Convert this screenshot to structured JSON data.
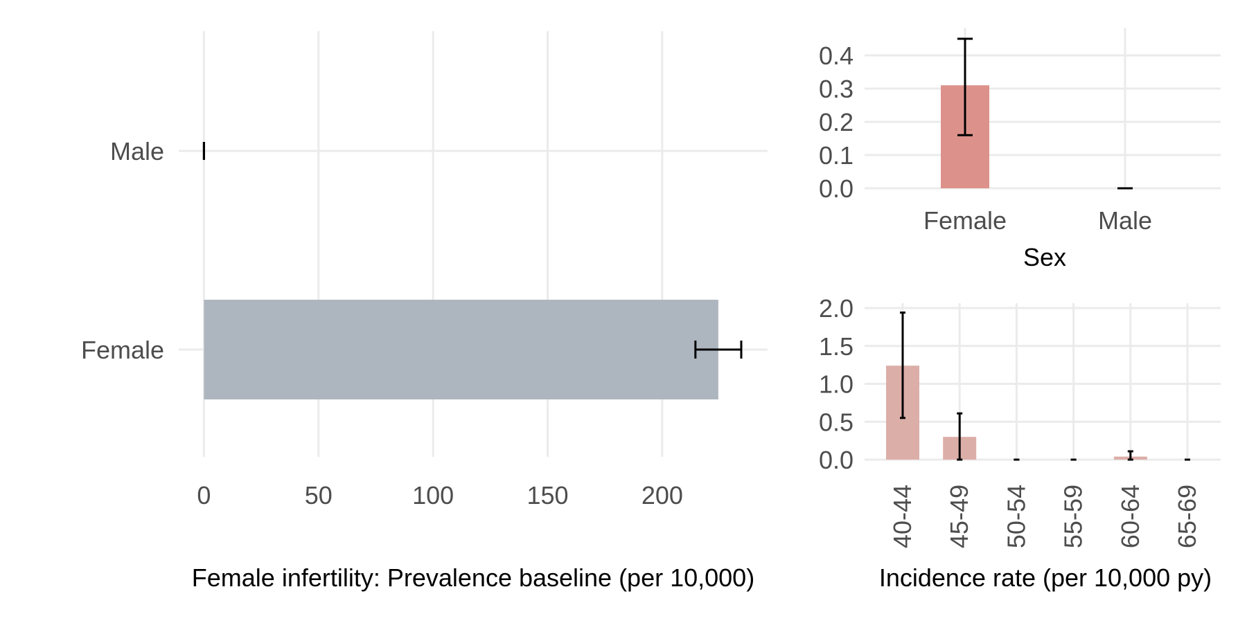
{
  "colors": {
    "prevalence_bar": "#adb5be",
    "sex_incidence_bar": "#dc928b",
    "age_incidence_bar": "#dcaea8",
    "grid": "#ebebeb",
    "error_bar": "#000000",
    "tick_text": "#4d4d4d",
    "title_text": "#000000"
  },
  "chart_data": [
    {
      "type": "bar",
      "orientation": "horizontal",
      "title": "",
      "xlabel": "Female infertility: Prevalence baseline (per 10,000)",
      "ylabel": "",
      "categories": [
        "Female",
        "Male"
      ],
      "values": [
        224.5,
        0
      ],
      "error_low": [
        214.5,
        0
      ],
      "error_high": [
        234.5,
        0
      ],
      "xlim": [
        -11,
        246
      ],
      "xticks": [
        0,
        50,
        100,
        150,
        200
      ],
      "xtick_labels": [
        "0",
        "50",
        "100",
        "150",
        "200"
      ],
      "grid": true,
      "legend": "none"
    },
    {
      "type": "bar",
      "title": "",
      "xlabel": "Sex",
      "ylabel": "",
      "categories": [
        "Female",
        "Male"
      ],
      "values": [
        0.31,
        0
      ],
      "error_low": [
        0.16,
        0
      ],
      "error_high": [
        0.45,
        0
      ],
      "ylim": [
        0,
        0.45
      ],
      "yticks": [
        0,
        0.1,
        0.2,
        0.3,
        0.4
      ],
      "ytick_labels": [
        "0.0",
        "0.1",
        "0.2",
        "0.3",
        "0.4"
      ],
      "grid": true,
      "legend": "none"
    },
    {
      "type": "bar",
      "title": "",
      "xlabel": "Incidence rate (per 10,000 py)",
      "ylabel": "",
      "categories": [
        "40-44",
        "45-49",
        "50-54",
        "55-59",
        "60-64",
        "65-69"
      ],
      "values": [
        1.24,
        0.3,
        0,
        0,
        0.04,
        0
      ],
      "error_low": [
        0.55,
        0,
        0,
        0,
        0,
        0
      ],
      "error_high": [
        1.94,
        0.61,
        0,
        0,
        0.11,
        0
      ],
      "ylim": [
        0,
        2.0
      ],
      "yticks": [
        0,
        0.5,
        1.0,
        1.5,
        2.0
      ],
      "ytick_labels": [
        "0.0",
        "0.5",
        "1.0",
        "1.5",
        "2.0"
      ],
      "xtick_rotation": 90,
      "grid": true,
      "legend": "none"
    }
  ]
}
